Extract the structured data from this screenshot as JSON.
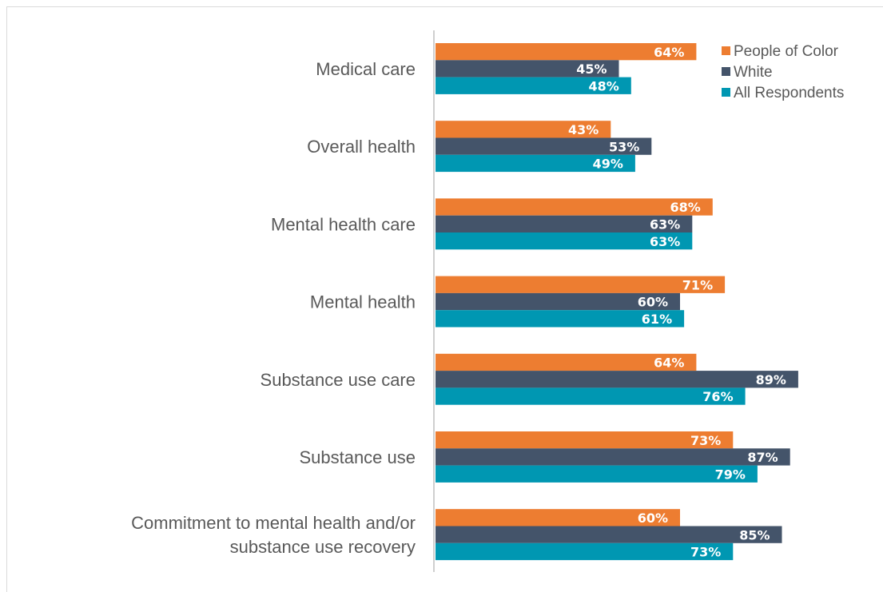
{
  "chart_data": {
    "type": "bar",
    "orientation": "horizontal",
    "categories": [
      "Medical care",
      "Overall health",
      "Mental health care",
      "Mental health",
      "Substance use care",
      "Substance use",
      "Commitment to mental health and/or substance use recovery"
    ],
    "series": [
      {
        "name": "People of Color",
        "color": "#ed7d31",
        "values": [
          64,
          43,
          68,
          71,
          64,
          73,
          60
        ]
      },
      {
        "name": "White",
        "color": "#44546a",
        "values": [
          45,
          53,
          63,
          60,
          89,
          87,
          85
        ]
      },
      {
        "name": "All Respondents",
        "color": "#0097b2",
        "values": [
          48,
          49,
          63,
          61,
          76,
          79,
          73
        ]
      }
    ],
    "value_suffix": "%",
    "xlim": [
      0,
      100
    ],
    "grid": false,
    "legend_position": "top-right",
    "data_labels": true
  }
}
